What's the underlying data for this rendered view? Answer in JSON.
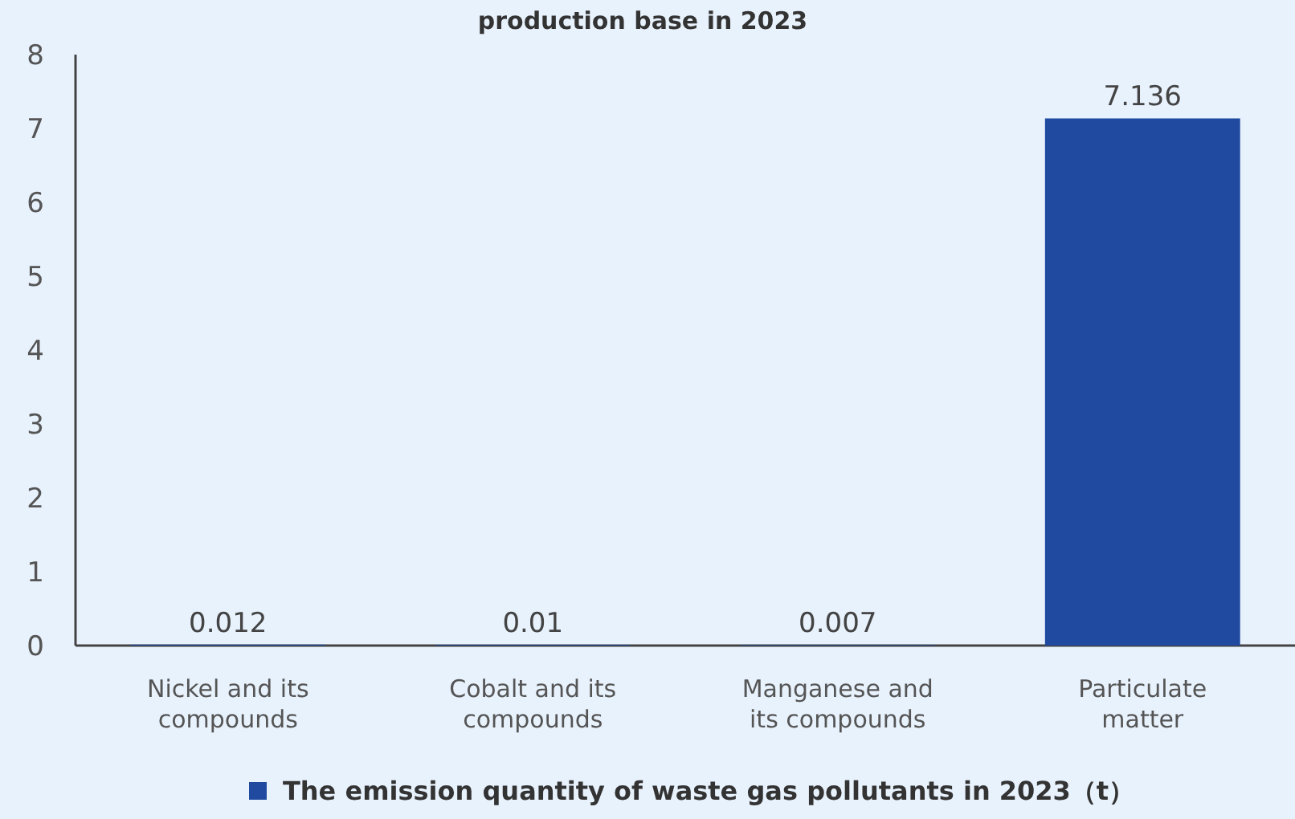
{
  "chart_data": {
    "type": "bar",
    "title": "production base in 2023",
    "categories": [
      "Nickel and its compounds",
      "Cobalt and its compounds",
      "Manganese and its compounds",
      "Particulate matter"
    ],
    "series": [
      {
        "name": "The emission quantity of waste gas pollutants in 2023（t）",
        "color": "#1f4aa0",
        "values": [
          0.012,
          0.01,
          0.007,
          7.136
        ]
      }
    ],
    "ylim": [
      0,
      8
    ],
    "yticks": [
      0,
      1,
      2,
      3,
      4,
      5,
      6,
      7,
      8
    ],
    "data_labels": true,
    "legend": "bottom",
    "grid": false
  }
}
